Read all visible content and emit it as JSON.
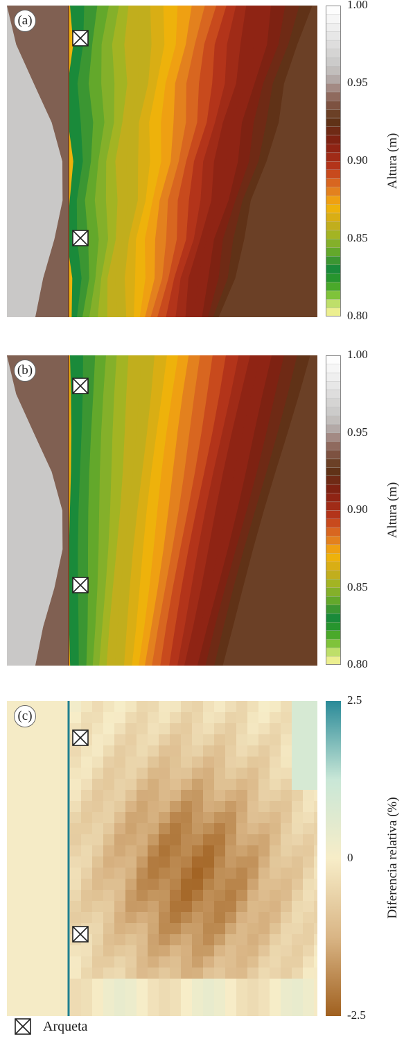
{
  "chart_data": [
    {
      "type": "heatmap",
      "panel_label": "(a)",
      "colorbar": {
        "label": "Altura (m)",
        "ticks": [
          "1.00",
          "0.95",
          "0.90",
          "0.85",
          "0.80"
        ],
        "range": [
          0.8,
          1.0
        ],
        "step": 0.01
      },
      "markers": [
        {
          "label": "Arqueta"
        },
        {
          "label": "Arqueta"
        }
      ]
    },
    {
      "type": "heatmap",
      "panel_label": "(b)",
      "colorbar": {
        "label": "Altura (m)",
        "ticks": [
          "1.00",
          "0.95",
          "0.90",
          "0.85",
          "0.80"
        ],
        "range": [
          0.8,
          1.0
        ],
        "step": 0.01
      },
      "markers": [
        {
          "label": "Arqueta"
        },
        {
          "label": "Arqueta"
        }
      ]
    },
    {
      "type": "heatmap",
      "panel_label": "(c)",
      "colorbar": {
        "label": "Diferencia relativa (%)",
        "ticks": [
          "2.5",
          "0",
          "-2.5"
        ],
        "range": [
          -2.5,
          2.5
        ],
        "colors": [
          "#a0601f",
          "#d9b585",
          "#f7edc8",
          "#c9e7d7",
          "#2a8a98"
        ]
      },
      "markers": [
        {
          "label": "Arqueta"
        },
        {
          "label": "Arqueta"
        }
      ]
    }
  ],
  "palette_height": [
    "#ecef90",
    "#bedf6a",
    "#7fc33a",
    "#4aa92a",
    "#27952e",
    "#1a8a3a",
    "#3b9632",
    "#63a82b",
    "#84b02a",
    "#a3b423",
    "#c1ae1d",
    "#d9ae14",
    "#eeb20b",
    "#efa012",
    "#e3811e",
    "#d86620",
    "#c84a1d",
    "#b3341a",
    "#a02b17",
    "#8f2414",
    "#7e2212",
    "#6f2a15",
    "#603217",
    "#6b4026",
    "#7d5241",
    "#8f6a5e",
    "#a38a84",
    "#b3a9a7",
    "#c2bebc",
    "#cccbca",
    "#d5d4d3",
    "#dedddd",
    "#e7e7e7",
    "#efefef",
    "#f6f6f6",
    "#fdfdfd"
  ],
  "legend": {
    "label": "Arqueta",
    "icon": "box-x-icon"
  }
}
